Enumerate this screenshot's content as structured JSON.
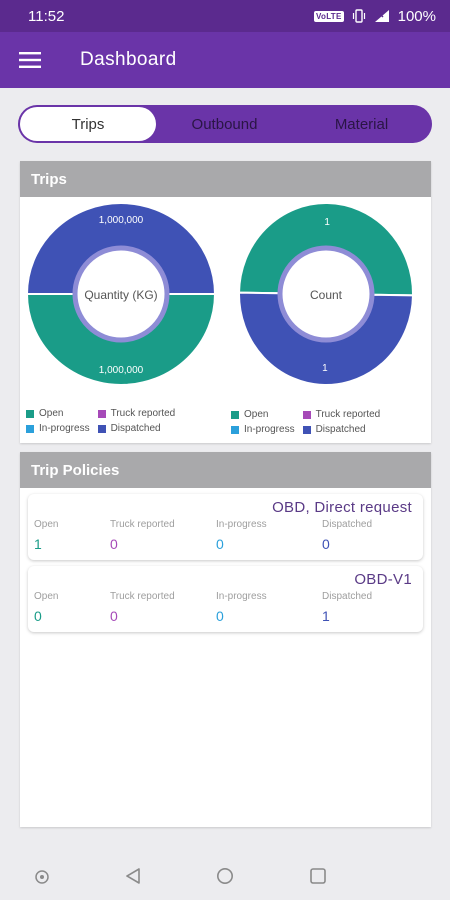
{
  "status_bar": {
    "time": "11:52",
    "network": "VoLTE",
    "battery": "100%"
  },
  "app_bar": {
    "title": "Dashboard"
  },
  "tabs": [
    {
      "label": "Trips",
      "active": true
    },
    {
      "label": "Outbound",
      "active": false
    },
    {
      "label": "Material",
      "active": false
    }
  ],
  "trips_card": {
    "title": "Trips",
    "legend": [
      {
        "label": "Open",
        "color": "#1a9c88"
      },
      {
        "label": "Truck reported",
        "color": "#a64ab8"
      },
      {
        "label": "In-progress",
        "color": "#2ba0db"
      },
      {
        "label": "Dispatched",
        "color": "#3f52b5"
      }
    ]
  },
  "chart_data": [
    {
      "type": "pie",
      "title": "Quantity (KG)",
      "categories": [
        "Dispatched",
        "Open"
      ],
      "values": [
        1000000,
        1000000
      ],
      "labels": [
        "1,000,000",
        "1,000,000"
      ],
      "colors": [
        "#3f52b5",
        "#1a9c88"
      ],
      "legend": [
        "Open",
        "Truck reported",
        "In-progress",
        "Dispatched"
      ],
      "legend_position": "bottom"
    },
    {
      "type": "pie",
      "title": "Count",
      "categories": [
        "Open",
        "Dispatched"
      ],
      "values": [
        1,
        1
      ],
      "labels": [
        "1",
        "1"
      ],
      "colors": [
        "#1a9c88",
        "#3f52b5"
      ],
      "legend": [
        "Open",
        "Truck reported",
        "In-progress",
        "Dispatched"
      ],
      "legend_position": "bottom"
    }
  ],
  "policies_card": {
    "title": "Trip Policies",
    "columns": [
      "Open",
      "Truck reported",
      "In-progress",
      "Dispatched"
    ],
    "column_colors": [
      "#1a9c88",
      "#a64ab8",
      "#2ba0db",
      "#3f52b5"
    ],
    "policies": [
      {
        "name": "OBD, Direct request",
        "values": [
          "1",
          "0",
          "0",
          "0"
        ]
      },
      {
        "name": "OBD-V1",
        "values": [
          "0",
          "0",
          "0",
          "1"
        ]
      }
    ]
  }
}
